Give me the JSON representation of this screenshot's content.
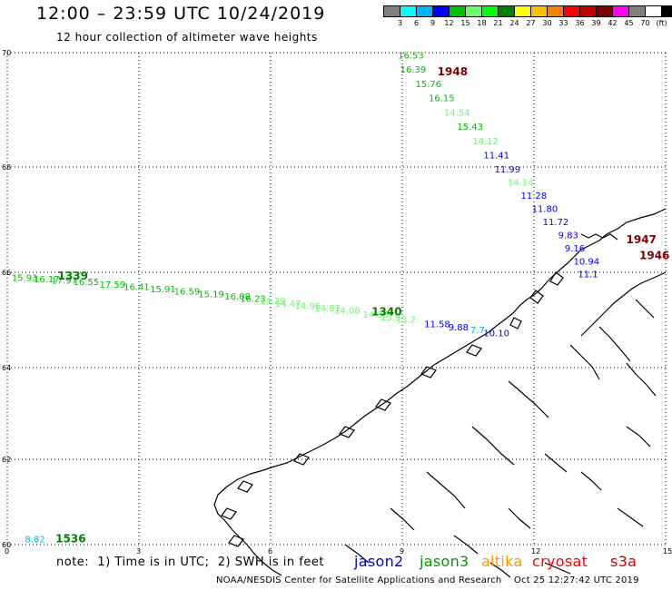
{
  "header": {
    "title": "12:00 – 23:59 UTC 10/24/2019",
    "subtitle": "12 hour collection of altimeter wave heights"
  },
  "scale": {
    "colors": [
      "#808080",
      "#00ffff",
      "#00b4ff",
      "#0000ff",
      "#00bf00",
      "#66ff66",
      "#00ff00",
      "#008000",
      "#ffff00",
      "#ffbf00",
      "#ff8000",
      "#ff0000",
      "#bf0000",
      "#800000",
      "#ff00ff",
      "#808080",
      "#ffffff",
      "#000000"
    ],
    "labels": [
      "3",
      "6",
      "9",
      "12",
      "15",
      "18",
      "21",
      "24",
      "27",
      "30",
      "33",
      "36",
      "39",
      "42",
      "45",
      "70",
      "(ft)"
    ]
  },
  "map": {
    "lat_ticks": [
      "60",
      "62",
      "64",
      "66",
      "68",
      "70"
    ],
    "lon_ticks": [
      "0",
      "3",
      "6",
      "9",
      "12",
      "15"
    ],
    "lat_range": [
      60,
      70
    ],
    "lon_range": [
      0,
      15
    ],
    "land_color": "#ffffff",
    "coast_color": "#000000",
    "grid": true
  },
  "passes": [
    {
      "label": "1948",
      "color": "#800000",
      "label_pos": {
        "lon": 9.8,
        "lat": 69.6
      }
    },
    {
      "label": "1947",
      "color": "#800000",
      "label_pos": {
        "lon": 14.1,
        "lat": 66.55
      }
    },
    {
      "label": "1946",
      "color": "#800000",
      "label_pos": {
        "lon": 14.4,
        "lat": 66.25
      }
    },
    {
      "label": "1339",
      "color": "#008000",
      "label_pos": {
        "lon": 1.15,
        "lat": 65.85
      }
    },
    {
      "label": "1340",
      "color": "#008000",
      "label_pos": {
        "lon": 8.3,
        "lat": 65.1
      }
    },
    {
      "label": "1536",
      "color": "#008000",
      "label_pos": {
        "lon": 1.1,
        "lat": 60.05
      }
    }
  ],
  "observations": [
    {
      "text": "16.53",
      "color": "#00bf00",
      "lon": 8.9,
      "lat": 69.9
    },
    {
      "text": "16.39",
      "color": "#00bf00",
      "lon": 8.95,
      "lat": 69.65
    },
    {
      "text": "15.76",
      "color": "#00bf00",
      "lon": 9.3,
      "lat": 69.4
    },
    {
      "text": "16.15",
      "color": "#00bf00",
      "lon": 9.6,
      "lat": 69.15
    },
    {
      "text": "14.54",
      "color": "#66ff66",
      "lon": 9.95,
      "lat": 68.9
    },
    {
      "text": "15.43",
      "color": "#00bf00",
      "lon": 10.25,
      "lat": 68.65
    },
    {
      "text": "14.12",
      "color": "#66ff66",
      "lon": 10.6,
      "lat": 68.4
    },
    {
      "text": "11.41",
      "color": "#0000ff",
      "lon": 10.85,
      "lat": 68.15
    },
    {
      "text": "11.99",
      "color": "#0000ff",
      "lon": 11.1,
      "lat": 67.9
    },
    {
      "text": "14.14",
      "color": "#66ff66",
      "lon": 11.4,
      "lat": 67.65
    },
    {
      "text": "11.28",
      "color": "#0000ff",
      "lon": 11.7,
      "lat": 67.4
    },
    {
      "text": "11.80",
      "color": "#0000ff",
      "lon": 11.95,
      "lat": 67.15
    },
    {
      "text": "11.72",
      "color": "#0000ff",
      "lon": 12.2,
      "lat": 66.9
    },
    {
      "text": "9.83",
      "color": "#0000ff",
      "lon": 12.55,
      "lat": 66.65
    },
    {
      "text": "9.16",
      "color": "#0000ff",
      "lon": 12.7,
      "lat": 66.4
    },
    {
      "text": "10.94",
      "color": "#0000ff",
      "lon": 12.9,
      "lat": 66.15
    },
    {
      "text": "11.1",
      "color": "#0000ff",
      "lon": 13.0,
      "lat": 65.9
    },
    {
      "text": "15.93",
      "color": "#00bf00",
      "lon": 0.1,
      "lat": 65.82
    },
    {
      "text": "16.17",
      "color": "#00bf00",
      "lon": 0.6,
      "lat": 65.79
    },
    {
      "text": "17.97",
      "color": "#00bf00",
      "lon": 1.0,
      "lat": 65.76
    },
    {
      "text": "16.55",
      "color": "#00bf00",
      "lon": 1.5,
      "lat": 65.73
    },
    {
      "text": "17.59",
      "color": "#00bf00",
      "lon": 2.1,
      "lat": 65.68
    },
    {
      "text": "16.41",
      "color": "#00bf00",
      "lon": 2.65,
      "lat": 65.63
    },
    {
      "text": "15.91",
      "color": "#00bf00",
      "lon": 3.25,
      "lat": 65.58
    },
    {
      "text": "16.59",
      "color": "#00bf00",
      "lon": 3.8,
      "lat": 65.53
    },
    {
      "text": "15.19",
      "color": "#00bf00",
      "lon": 4.35,
      "lat": 65.48
    },
    {
      "text": "16.08",
      "color": "#00bf00",
      "lon": 4.95,
      "lat": 65.43
    },
    {
      "text": "16.23",
      "color": "#00bf00",
      "lon": 5.3,
      "lat": 65.38
    },
    {
      "text": "14.29",
      "color": "#66ff66",
      "lon": 5.75,
      "lat": 65.33
    },
    {
      "text": "14.47",
      "color": "#66ff66",
      "lon": 6.1,
      "lat": 65.28
    },
    {
      "text": "14.96",
      "color": "#66ff66",
      "lon": 6.55,
      "lat": 65.23
    },
    {
      "text": "14.83",
      "color": "#66ff66",
      "lon": 7.0,
      "lat": 65.18
    },
    {
      "text": "14.08",
      "color": "#66ff66",
      "lon": 7.45,
      "lat": 65.13
    },
    {
      "text": "14.38",
      "color": "#66ff66",
      "lon": 8.1,
      "lat": 65.05
    },
    {
      "text": "13.9",
      "color": "#66ff66",
      "lon": 8.5,
      "lat": 64.99
    },
    {
      "text": "13.2",
      "color": "#66ff66",
      "lon": 8.85,
      "lat": 64.94
    },
    {
      "text": "11.58",
      "color": "#0000ff",
      "lon": 9.5,
      "lat": 64.85
    },
    {
      "text": "9.88",
      "color": "#0000ff",
      "lon": 10.05,
      "lat": 64.78
    },
    {
      "text": "7.7",
      "color": "#00b4ff",
      "lon": 10.55,
      "lat": 64.72
    },
    {
      "text": "10.10",
      "color": "#0000ff",
      "lon": 10.85,
      "lat": 64.66
    },
    {
      "text": "8.82",
      "color": "#00b4ff",
      "lon": 0.4,
      "lat": 60.05
    }
  ],
  "footer": {
    "note": "note:  1) Time is in UTC;  2) SWH is in feet",
    "credit": "NOAA/NESDIS Center for Satellite Applications and Research    Oct 25 12:27:42 UTC 2019"
  },
  "satellites": [
    {
      "name": "jason2",
      "color": "#0000c8"
    },
    {
      "name": "jason3",
      "color": "#009600"
    },
    {
      "name": "altika",
      "color": "#ff9600"
    },
    {
      "name": "cryosat",
      "color": "#ff0000"
    },
    {
      "name": "s3a",
      "color": "#c80000"
    }
  ]
}
